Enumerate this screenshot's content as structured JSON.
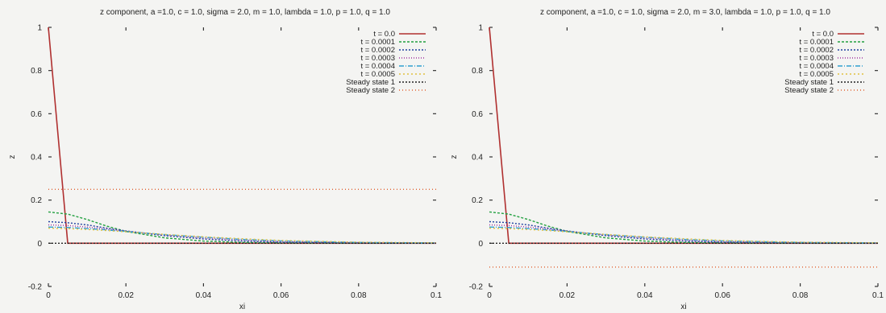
{
  "chart_data": [
    {
      "type": "line",
      "title": "z component, a =1.0, c = 1.0, sigma = 2.0, m = 1.0, lambda = 1.0, p = 1.0, q = 1.0",
      "xlabel": "xi",
      "ylabel": "z",
      "xlim": [
        0,
        0.1
      ],
      "ylim": [
        -0.2,
        1
      ],
      "xticks": [
        "0",
        "0.02",
        "0.04",
        "0.06",
        "0.08",
        "0.1"
      ],
      "yticks": [
        "-0.2",
        "0",
        "0.2",
        "0.4",
        "0.6",
        "0.8",
        "1"
      ],
      "legend_position": "top-right",
      "grid": false,
      "series": [
        {
          "name": "t = 0.0",
          "color": "#b03030",
          "dash": "",
          "x": [
            0,
            0.005,
            0.1
          ],
          "y": [
            1.0,
            0.0,
            0.0
          ]
        },
        {
          "name": "t = 0.0001",
          "color": "#22a040",
          "dash": "3,2",
          "x": [
            0,
            0.005,
            0.01,
            0.015,
            0.02,
            0.03,
            0.04,
            0.05,
            0.06,
            0.08,
            0.1
          ],
          "y": [
            0.145,
            0.135,
            0.11,
            0.08,
            0.055,
            0.025,
            0.01,
            0.004,
            0.002,
            0.001,
            0.001
          ]
        },
        {
          "name": "t = 0.0002",
          "color": "#2040a0",
          "dash": "2,2",
          "x": [
            0,
            0.005,
            0.01,
            0.015,
            0.02,
            0.03,
            0.04,
            0.05,
            0.06,
            0.08,
            0.1
          ],
          "y": [
            0.1,
            0.095,
            0.085,
            0.07,
            0.057,
            0.035,
            0.02,
            0.01,
            0.005,
            0.002,
            0.001
          ]
        },
        {
          "name": "t = 0.0003",
          "color": "#a030a0",
          "dash": "1,2",
          "x": [
            0,
            0.005,
            0.01,
            0.015,
            0.02,
            0.03,
            0.04,
            0.05,
            0.06,
            0.08,
            0.1
          ],
          "y": [
            0.085,
            0.082,
            0.075,
            0.066,
            0.056,
            0.038,
            0.025,
            0.015,
            0.008,
            0.003,
            0.001
          ]
        },
        {
          "name": "t = 0.0004",
          "color": "#30a0d0",
          "dash": "6,2,1,2",
          "x": [
            0,
            0.005,
            0.01,
            0.015,
            0.02,
            0.03,
            0.04,
            0.05,
            0.06,
            0.08,
            0.1
          ],
          "y": [
            0.075,
            0.073,
            0.068,
            0.062,
            0.054,
            0.04,
            0.028,
            0.018,
            0.011,
            0.004,
            0.001
          ]
        },
        {
          "name": "t = 0.0005",
          "color": "#e0c040",
          "dash": "2,3",
          "x": [
            0,
            0.005,
            0.01,
            0.015,
            0.02,
            0.03,
            0.04,
            0.05,
            0.06,
            0.08,
            0.1
          ],
          "y": [
            0.07,
            0.068,
            0.064,
            0.059,
            0.053,
            0.041,
            0.03,
            0.021,
            0.013,
            0.005,
            0.002
          ]
        },
        {
          "name": "Steady state 1",
          "color": "#222222",
          "dash": "2,2",
          "x": [
            0,
            0.1
          ],
          "y": [
            0.0,
            0.0
          ]
        },
        {
          "name": "Steady state 2",
          "color": "#e06030",
          "dash": "1,3",
          "x": [
            0,
            0.1
          ],
          "y": [
            0.25,
            0.25
          ]
        }
      ]
    },
    {
      "type": "line",
      "title": "z component, a =1.0, c = 1.0, sigma = 2.0, m = 3.0, lambda = 1.0, p = 1.0, q = 1.0",
      "xlabel": "xi",
      "ylabel": "z",
      "xlim": [
        0,
        0.1
      ],
      "ylim": [
        -0.2,
        1
      ],
      "xticks": [
        "0",
        "0.02",
        "0.04",
        "0.06",
        "0.08",
        "0.1"
      ],
      "yticks": [
        "-0.2",
        "0",
        "0.2",
        "0.4",
        "0.6",
        "0.8",
        "1"
      ],
      "legend_position": "top-right",
      "grid": false,
      "series": [
        {
          "name": "t = 0.0",
          "color": "#b03030",
          "dash": "",
          "x": [
            0,
            0.005,
            0.1
          ],
          "y": [
            1.0,
            0.0,
            0.0
          ]
        },
        {
          "name": "t = 0.0001",
          "color": "#22a040",
          "dash": "3,2",
          "x": [
            0,
            0.005,
            0.01,
            0.015,
            0.02,
            0.03,
            0.04,
            0.05,
            0.06,
            0.08,
            0.1
          ],
          "y": [
            0.145,
            0.135,
            0.11,
            0.08,
            0.055,
            0.025,
            0.01,
            0.004,
            0.002,
            0.001,
            0.001
          ]
        },
        {
          "name": "t = 0.0002",
          "color": "#2040a0",
          "dash": "2,2",
          "x": [
            0,
            0.005,
            0.01,
            0.015,
            0.02,
            0.03,
            0.04,
            0.05,
            0.06,
            0.08,
            0.1
          ],
          "y": [
            0.1,
            0.095,
            0.085,
            0.07,
            0.057,
            0.035,
            0.02,
            0.01,
            0.005,
            0.002,
            0.001
          ]
        },
        {
          "name": "t = 0.0003",
          "color": "#a030a0",
          "dash": "1,2",
          "x": [
            0,
            0.005,
            0.01,
            0.015,
            0.02,
            0.03,
            0.04,
            0.05,
            0.06,
            0.08,
            0.1
          ],
          "y": [
            0.085,
            0.082,
            0.075,
            0.066,
            0.056,
            0.038,
            0.025,
            0.015,
            0.008,
            0.003,
            0.001
          ]
        },
        {
          "name": "t = 0.0004",
          "color": "#30a0d0",
          "dash": "6,2,1,2",
          "x": [
            0,
            0.005,
            0.01,
            0.015,
            0.02,
            0.03,
            0.04,
            0.05,
            0.06,
            0.08,
            0.1
          ],
          "y": [
            0.075,
            0.073,
            0.068,
            0.062,
            0.054,
            0.04,
            0.028,
            0.018,
            0.011,
            0.004,
            0.001
          ]
        },
        {
          "name": "t = 0.0005",
          "color": "#e0c040",
          "dash": "2,3",
          "x": [
            0,
            0.005,
            0.01,
            0.015,
            0.02,
            0.03,
            0.04,
            0.05,
            0.06,
            0.08,
            0.1
          ],
          "y": [
            0.07,
            0.068,
            0.064,
            0.059,
            0.053,
            0.041,
            0.03,
            0.021,
            0.013,
            0.005,
            0.002
          ]
        },
        {
          "name": "Steady state 1",
          "color": "#222222",
          "dash": "2,2",
          "x": [
            0,
            0.1
          ],
          "y": [
            0.0,
            0.0
          ]
        },
        {
          "name": "Steady state 2",
          "color": "#e06030",
          "dash": "1,3",
          "x": [
            0,
            0.1
          ],
          "y": [
            -0.11,
            -0.11
          ]
        }
      ]
    }
  ]
}
